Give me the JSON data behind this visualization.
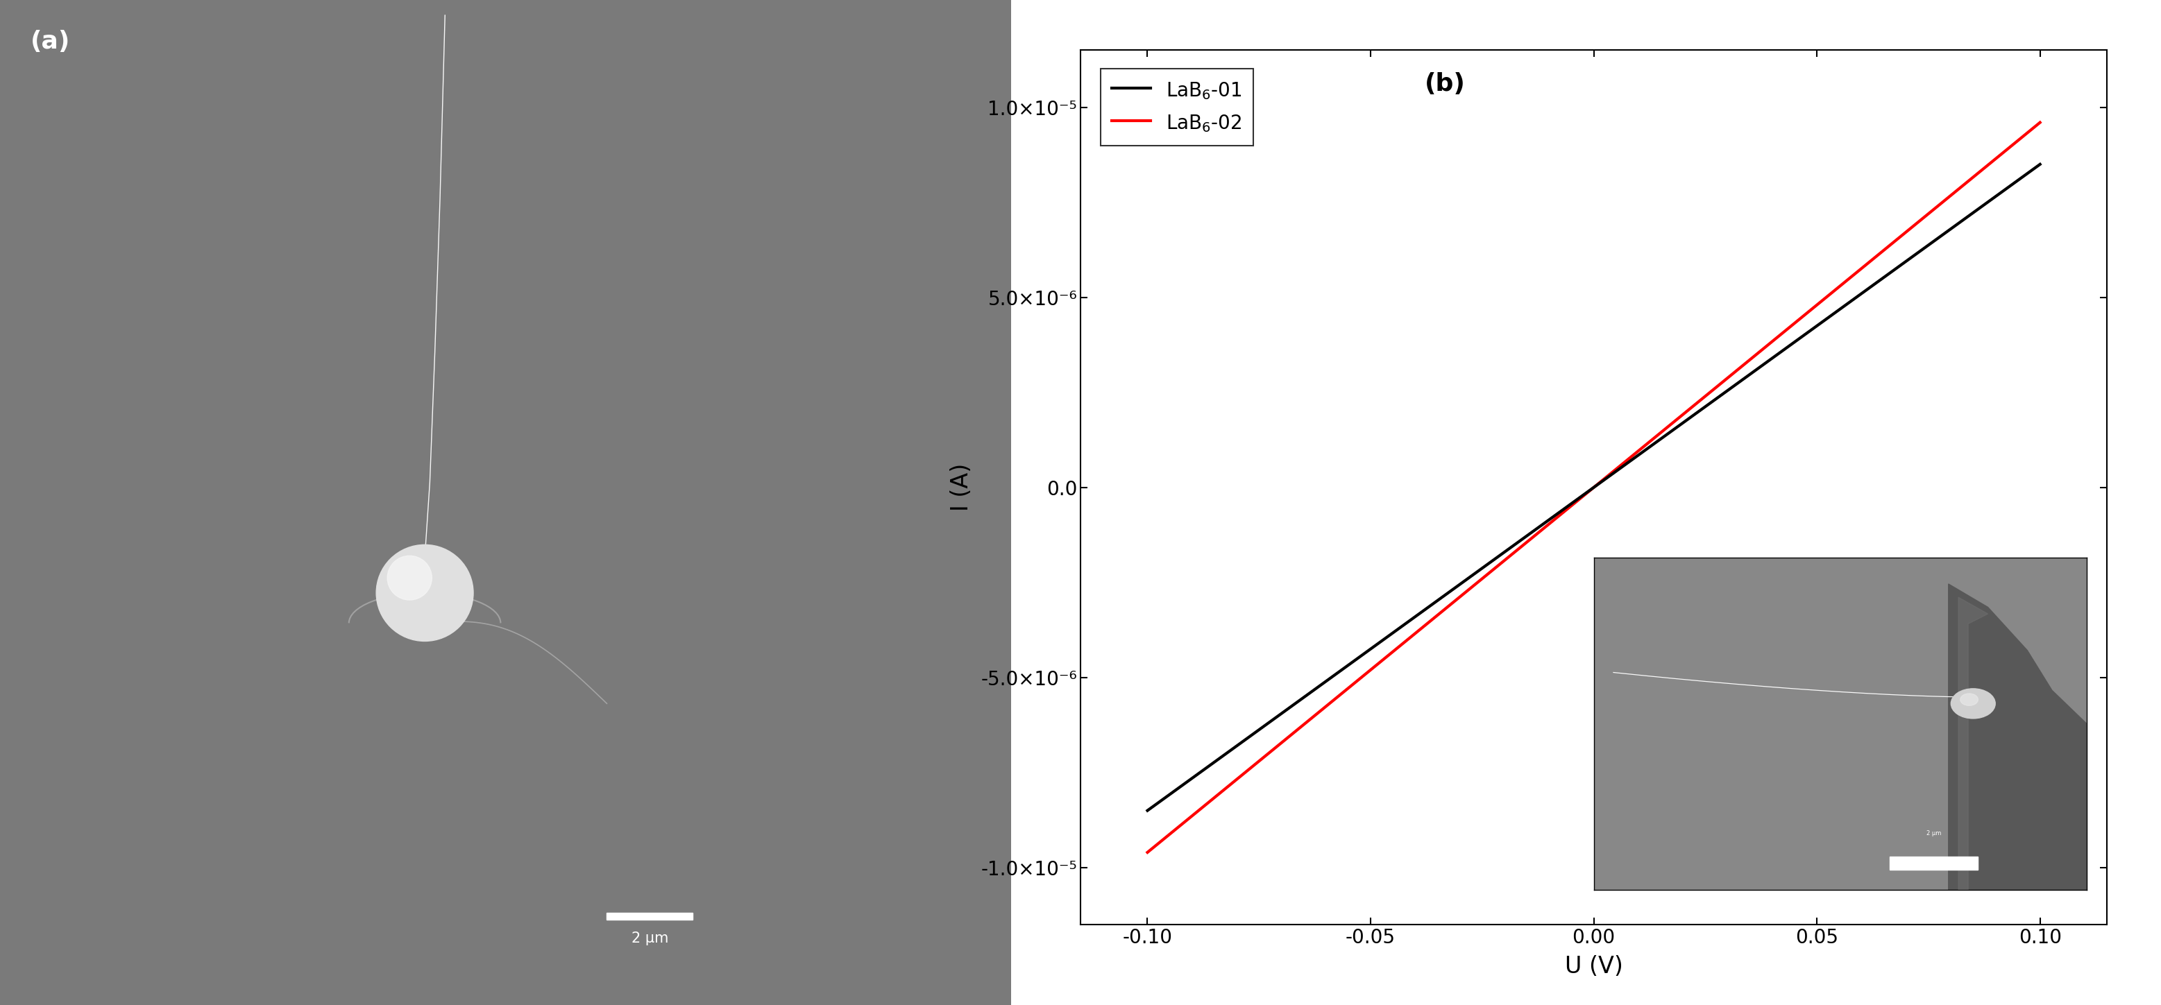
{
  "panel_a_bg_color": "#7a7a7a",
  "panel_b_bg_color": "#ffffff",
  "label_a": "(a)",
  "label_b": "(b)",
  "xlabel": "U (V)",
  "ylabel": "I (A)",
  "xlim": [
    -0.115,
    0.115
  ],
  "ylim": [
    -1.15e-05,
    1.15e-05
  ],
  "xticks": [
    -0.1,
    -0.05,
    0.0,
    0.05,
    0.1
  ],
  "yticks": [
    -1e-05,
    -5e-06,
    0.0,
    5e-06,
    1e-05
  ],
  "ytick_labels": [
    "-1.0×10⁻⁵",
    "-5.0×10⁻⁶",
    "0.0",
    "5.0×10⁻⁶",
    "1.0×10⁻⁵"
  ],
  "xtick_labels": [
    "-0.10",
    "-0.05",
    "0.00",
    "0.05",
    "0.10"
  ],
  "line1_label": "LaB$_6$-01",
  "line1_color": "#000000",
  "line1_slope_AperV": 8.5e-05,
  "line2_label": "LaB$_6$-02",
  "line2_color": "#ff0000",
  "line2_slope_AperV": 9.6e-05,
  "line_width": 3.0,
  "tick_fontsize": 20,
  "label_fontsize": 24,
  "legend_fontsize": 20,
  "panel_label_fontsize": 26,
  "scalebar_text": "2 μm",
  "inset_bg_color": "#888888",
  "wire_color": "#b8b8b8",
  "sphere_color": "#d8d8d8"
}
